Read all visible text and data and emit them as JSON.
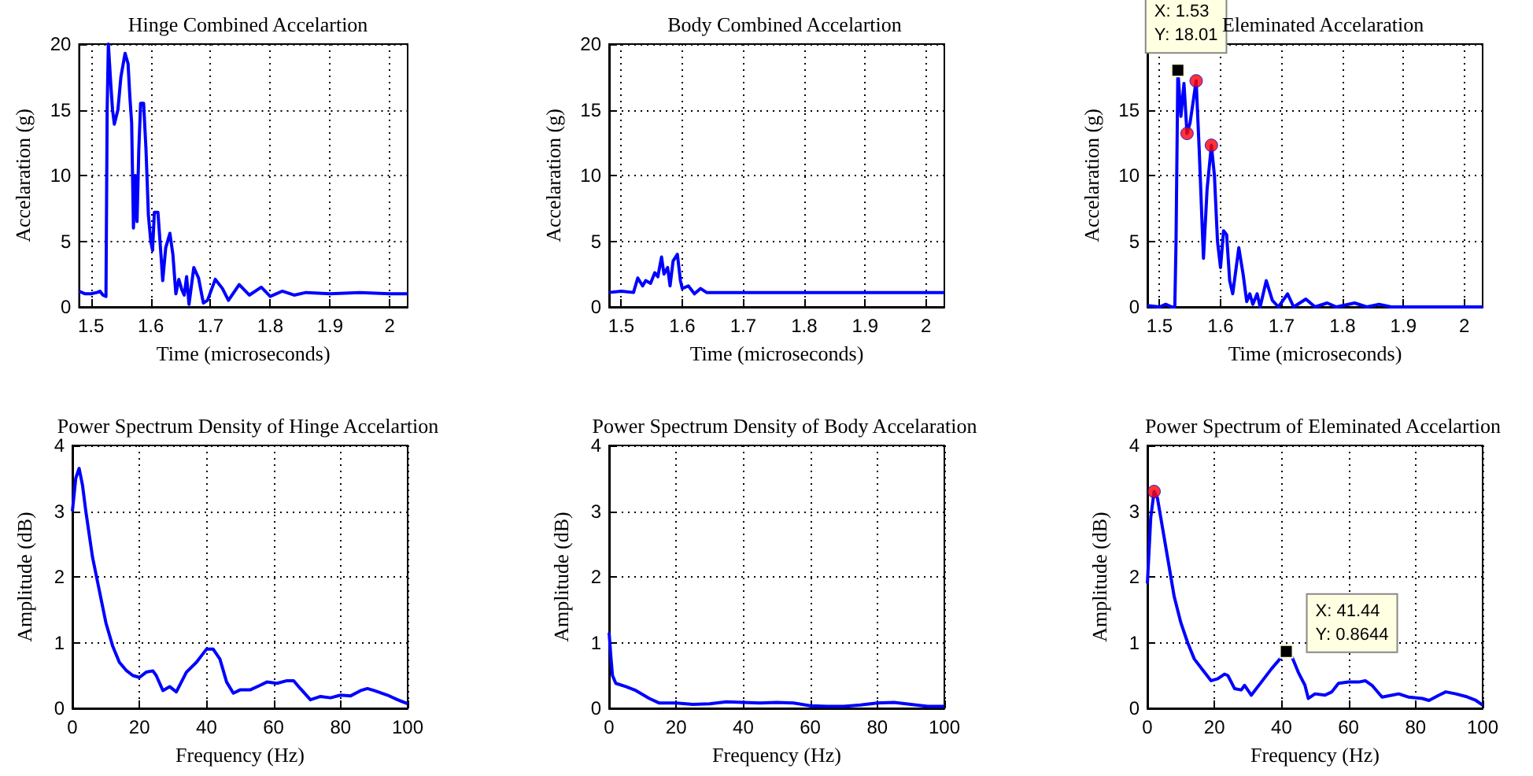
{
  "chart_data": [
    {
      "type": "line",
      "title": "Hinge Combined Accelartion",
      "xlabel": "Time (microseconds)",
      "ylabel": "Accelaration (g)",
      "xlim": [
        1.48,
        2.03
      ],
      "xticks": [
        1.5,
        1.6,
        1.7,
        1.8,
        1.9,
        2
      ],
      "ylim": [
        0,
        20
      ],
      "yticks": [
        0,
        5,
        10,
        15,
        20
      ],
      "grid": true,
      "x": [
        1.48,
        1.49,
        1.5,
        1.51,
        1.515,
        1.52,
        1.525,
        1.527,
        1.529,
        1.533,
        1.536,
        1.539,
        1.545,
        1.55,
        1.557,
        1.562,
        1.565,
        1.568,
        1.571,
        1.574,
        1.577,
        1.58,
        1.583,
        1.588,
        1.592,
        1.596,
        1.6,
        1.603,
        1.606,
        1.612,
        1.617,
        1.62,
        1.625,
        1.632,
        1.637,
        1.642,
        1.647,
        1.652,
        1.656,
        1.66,
        1.664,
        1.672,
        1.68,
        1.688,
        1.695,
        1.708,
        1.72,
        1.73,
        1.748,
        1.765,
        1.785,
        1.8,
        1.82,
        1.84,
        1.86,
        1.9,
        1.95,
        2,
        2.03
      ],
      "series": [
        {
          "color": "#0000ff",
          "values": [
            1.2,
            1.0,
            1.0,
            1.1,
            1.2,
            0.9,
            0.8,
            15,
            20,
            17,
            15,
            13.9,
            15,
            17.5,
            19.3,
            18.5,
            16,
            14,
            6,
            10,
            6.5,
            12,
            15.5,
            15.5,
            12,
            7,
            5,
            4.3,
            7.2,
            7.2,
            4,
            2.0,
            4.5,
            5.6,
            4,
            1.0,
            2.1,
            1.3,
            0.9,
            2.3,
            0.2,
            3.0,
            2.2,
            0.3,
            0.5,
            2.1,
            1.4,
            0.5,
            1.7,
            0.9,
            1.5,
            0.8,
            1.2,
            0.9,
            1.1,
            1.0,
            1.1,
            1.0,
            1.0
          ]
        }
      ]
    },
    {
      "type": "line",
      "title": "Body Combined Accelartion",
      "xlabel": "Time (microseconds)",
      "ylabel": "Accelaration (g)",
      "xlim": [
        1.48,
        2.03
      ],
      "xticks": [
        1.5,
        1.6,
        1.7,
        1.8,
        1.9,
        2
      ],
      "ylim": [
        0,
        20
      ],
      "yticks": [
        0,
        5,
        10,
        15,
        20
      ],
      "grid": true,
      "x": [
        1.48,
        1.5,
        1.52,
        1.527,
        1.535,
        1.54,
        1.548,
        1.555,
        1.56,
        1.566,
        1.57,
        1.576,
        1.58,
        1.585,
        1.592,
        1.597,
        1.6,
        1.61,
        1.62,
        1.63,
        1.64,
        1.7,
        2.03
      ],
      "series": [
        {
          "color": "#0000ff",
          "values": [
            1.1,
            1.2,
            1.1,
            2.2,
            1.6,
            2.0,
            1.8,
            2.6,
            2.3,
            3.8,
            2.5,
            3.0,
            1.6,
            3.5,
            4.0,
            2.0,
            1.4,
            1.6,
            1.0,
            1.4,
            1.1,
            1.1,
            1.1
          ]
        }
      ]
    },
    {
      "type": "line",
      "title": "Eleminated Accelaration",
      "xlabel": "Time (microseconds)",
      "ylabel": "Accelaration (g)",
      "xlim": [
        1.48,
        2.03
      ],
      "xticks": [
        1.5,
        1.6,
        1.7,
        1.8,
        1.9,
        2
      ],
      "ylim": [
        0,
        20
      ],
      "yticks": [
        0,
        5,
        10,
        15,
        {
          "value": 20,
          "label": null
        }
      ],
      "grid": true,
      "x": [
        1.48,
        1.5,
        1.505,
        1.51,
        1.52,
        1.525,
        1.527,
        1.53,
        1.535,
        1.54,
        1.545,
        1.55,
        1.56,
        1.565,
        1.57,
        1.572,
        1.578,
        1.585,
        1.59,
        1.595,
        1.6,
        1.605,
        1.61,
        1.615,
        1.62,
        1.63,
        1.637,
        1.643,
        1.648,
        1.653,
        1.66,
        1.665,
        1.675,
        1.685,
        1.695,
        1.71,
        1.72,
        1.74,
        1.755,
        1.775,
        1.79,
        1.82,
        1.84,
        1.86,
        1.88,
        2.03
      ],
      "series": [
        {
          "color": "#0000ff",
          "values": [
            0.1,
            0,
            0.1,
            0.2,
            0,
            0,
            5,
            18.01,
            14.5,
            17.0,
            13.2,
            14,
            17.2,
            12,
            6,
            3.7,
            9,
            12.3,
            10,
            5,
            3,
            5.8,
            5.5,
            2,
            1.0,
            4.5,
            2.5,
            0.4,
            1.0,
            0.2,
            1.0,
            0,
            2.0,
            0.5,
            0,
            1.0,
            0,
            0.6,
            0,
            0.3,
            0,
            0.3,
            0,
            0.2,
            0,
            0
          ]
        },
        {
          "type": "scatter",
          "color": "#ff0000",
          "marker": "circle",
          "x": [
            1.545,
            1.56,
            1.585
          ],
          "values": [
            13.2,
            17.2,
            12.3
          ]
        }
      ],
      "annotations": [
        {
          "text": "X: 1.53\nY: 18.01",
          "x": 1.53,
          "y": 18.01
        }
      ]
    },
    {
      "type": "line",
      "title": "Power Spectrum Density of Hinge Accelartion",
      "xlabel": "Frequency (Hz)",
      "ylabel": "Amplitude (dB)",
      "xlim": [
        0,
        100
      ],
      "xticks": [
        0,
        20,
        40,
        60,
        80,
        100
      ],
      "ylim": [
        0,
        4
      ],
      "yticks": [
        0,
        1,
        2,
        3,
        4
      ],
      "grid": true,
      "x": [
        0,
        1,
        2,
        3,
        4,
        6,
        8,
        10,
        12,
        14,
        16,
        18,
        20,
        22,
        24,
        25,
        27,
        29,
        31,
        34,
        37,
        40,
        42,
        44,
        46,
        48,
        50,
        53,
        56,
        58,
        61,
        64,
        66,
        68,
        71,
        74,
        77,
        80,
        83,
        86,
        88,
        90,
        94,
        97,
        100
      ],
      "series": [
        {
          "color": "#0000ff",
          "values": [
            3.0,
            3.5,
            3.65,
            3.4,
            3.0,
            2.3,
            1.8,
            1.3,
            0.95,
            0.7,
            0.58,
            0.5,
            0.47,
            0.55,
            0.57,
            0.5,
            0.27,
            0.33,
            0.25,
            0.55,
            0.7,
            0.9,
            0.9,
            0.75,
            0.4,
            0.23,
            0.28,
            0.28,
            0.35,
            0.4,
            0.38,
            0.42,
            0.42,
            0.3,
            0.13,
            0.18,
            0.16,
            0.2,
            0.19,
            0.27,
            0.3,
            0.27,
            0.2,
            0.13,
            0.07
          ]
        }
      ]
    },
    {
      "type": "line",
      "title": "Power Spectrum Density of Body Accelaration",
      "xlabel": "Frequency (Hz)",
      "ylabel": "Amplitude (dB)",
      "xlim": [
        0,
        100
      ],
      "xticks": [
        0,
        20,
        40,
        60,
        80,
        100
      ],
      "ylim": [
        0,
        4
      ],
      "yticks": [
        0,
        1,
        2,
        3,
        4
      ],
      "grid": true,
      "x": [
        0,
        0.5,
        1,
        2,
        5,
        8,
        12,
        15,
        20,
        25,
        30,
        35,
        40,
        45,
        50,
        55,
        60,
        65,
        70,
        75,
        80,
        85,
        90,
        95,
        100
      ],
      "series": [
        {
          "color": "#0000ff",
          "values": [
            1.15,
            0.8,
            0.5,
            0.38,
            0.33,
            0.27,
            0.15,
            0.08,
            0.08,
            0.06,
            0.07,
            0.1,
            0.09,
            0.08,
            0.09,
            0.08,
            0.04,
            0.03,
            0.03,
            0.05,
            0.08,
            0.09,
            0.06,
            0.03,
            0.03
          ]
        }
      ]
    },
    {
      "type": "line",
      "title": "Power Spectrum of Eleminated Accelartion",
      "xlabel": "Frequency (Hz)",
      "ylabel": "Amplitude (dB)",
      "xlim": [
        0,
        100
      ],
      "xticks": [
        0,
        20,
        40,
        60,
        80,
        100
      ],
      "ylim": [
        0,
        4
      ],
      "yticks": [
        0,
        1,
        2,
        3,
        4
      ],
      "grid": true,
      "x": [
        0,
        1,
        2,
        3,
        4,
        6,
        8,
        10,
        12,
        14,
        17,
        19,
        21,
        23,
        24,
        26,
        28,
        29,
        31,
        34,
        37,
        40,
        41.44,
        43,
        45,
        47,
        48,
        50,
        53,
        55,
        57,
        60,
        63,
        65,
        67,
        70,
        73,
        75,
        78,
        82,
        84,
        87,
        89,
        92,
        95,
        98,
        100
      ],
      "series": [
        {
          "color": "#0000ff",
          "values": [
            1.9,
            2.9,
            3.3,
            3.2,
            2.9,
            2.3,
            1.7,
            1.3,
            1.0,
            0.75,
            0.55,
            0.42,
            0.45,
            0.52,
            0.5,
            0.3,
            0.28,
            0.35,
            0.2,
            0.4,
            0.6,
            0.78,
            0.8644,
            0.8,
            0.55,
            0.35,
            0.15,
            0.22,
            0.2,
            0.25,
            0.38,
            0.4,
            0.4,
            0.42,
            0.35,
            0.17,
            0.2,
            0.22,
            0.17,
            0.15,
            0.12,
            0.2,
            0.25,
            0.22,
            0.18,
            0.12,
            0.05
          ]
        },
        {
          "type": "scatter",
          "color": "#ff0000",
          "marker": "circle",
          "x": [
            2
          ],
          "values": [
            3.3
          ]
        }
      ],
      "annotations": [
        {
          "text": "X: 41.44\nY: 0.8644",
          "x": 41.44,
          "y": 0.8644
        }
      ]
    }
  ]
}
